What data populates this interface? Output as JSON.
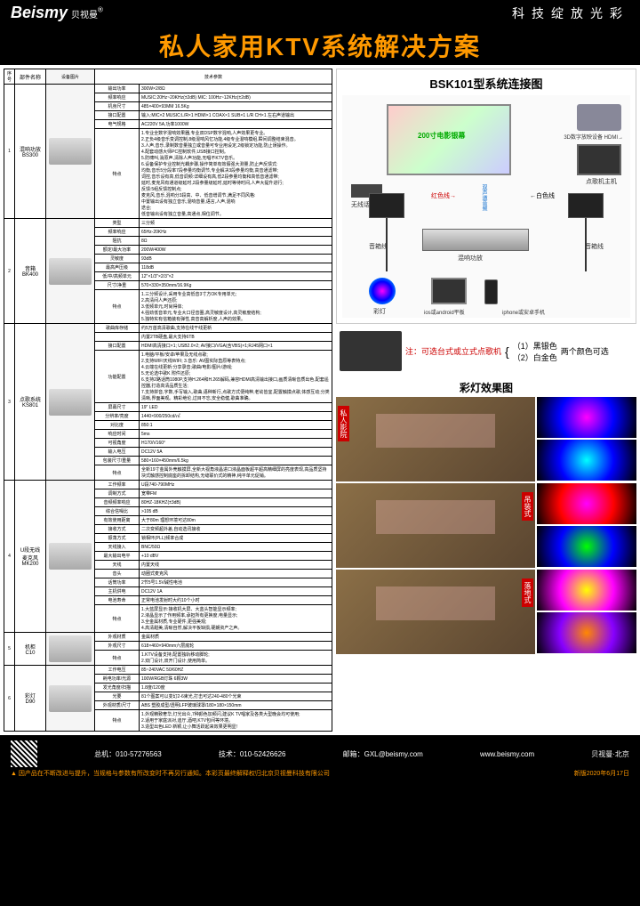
{
  "header": {
    "logo": "Beismy",
    "logo_cn": "贝视曼",
    "tagline": "科技绽放光彩"
  },
  "title": "私人家用KTV系统解决方案",
  "table": {
    "headers": [
      "序号",
      "部件名称",
      "设备图片",
      "技术参数"
    ],
    "rows": [
      {
        "num": "1",
        "name": "混响功放\nBS300",
        "specs": [
          [
            "输出功率",
            "300W×2/8Ω"
          ],
          [
            "频率响应",
            "MUSIC:20Hz~20KHz(±2dB) MIC: 100Hz~12KHz(±2dB)"
          ],
          [
            "机身尺寸",
            "485×400×93MM 16.5Kg"
          ],
          [
            "接口配置",
            "输入:MIC×2 MUSIC:L/R×1 HDMI×1 COAX×1 SUB×1 L/R CH×1 左右声道输出"
          ],
          [
            "电气规格",
            "AC220V 5A,功率1000W"
          ],
          [
            "特点",
            "1.专业全数字混响效果器,专业双DSP数字混响,人声效果更专业。\n2.正负4级音乐变调控制,8级混响风忆功能,4级专业混响模组,瞬间调整结束混音。\n3.人声,音乐,录制数音量独立或音量可专业用设定,2级锁定功能,防止误操作。\n4.配套动感大师PC控制软件,USB接口控制。\n5.防啸叫,消原声,清除人声功能,无唱不KTV音乐。\n6.设备保护专业控制光耦步骤,操作简单有效假强大测量,防止声反馈式:\n均衡,音乐5分段率7段参量均衡调节,专业解决3段参量均衡,高音通滤带;\n词控,音乐设有高,低音调频:详细设有高,低2段参量均衡和高低音通滤带;\n延时,麦克风有通道级延时,2段参量级延时,延时等待时间,人声大提升进行;\n反馈:5组反馈控制点;\n麦克风,音乐,混响分3段高、中、低音增调节,满足不同风格:\n中置输出设有独立音乐,混响音量,语言,人声,混响\n迭合;\n低音输出设有独立音量,高通点,相位调节。"
          ]
        ]
      },
      {
        "num": "2",
        "name": "音箱\nBK400",
        "specs": [
          [
            "类型",
            "三分频"
          ],
          [
            "频率响应",
            "65Hz-20KHz"
          ],
          [
            "阻抗",
            "8Ω"
          ],
          [
            "额定/最大功率",
            "200W/400W"
          ],
          [
            "灵敏度",
            "93dB"
          ],
          [
            "最高声压级",
            "118dB"
          ],
          [
            "低/中/高频单元",
            "12\"×1/3\"×2/3\"×2"
          ],
          [
            "尺寸/净重",
            "570×330×350mm/16.9Kg"
          ],
          [
            "特点",
            "1.三分频设计,采用专业高低音3寸方OK专用单元;\n2.高清间人声还原;\n3.低频单元,时尚得体;\n4.强劲低音单元,专业大口径音圈,高灵敏度设计,高灵敏度结构;\n5.独特实有信箱装有弹性,高音高解析度,人声的效果。"
          ]
        ]
      },
      {
        "num": "3",
        "name": "点歌系统\nKS801",
        "specs": [
          [
            "歌曲库存储",
            "约5万首高清歌曲,支持在线干线更新"
          ],
          [
            "",
            "内置2TB硬盘,最大支持6TB"
          ],
          [
            "接口配置",
            "HDMI高清接口×1; USB2.0×2; AV接口/VGA(含VBS)×1;RJ45网口×1"
          ],
          [
            "功能配置",
            "1.电脑/平板/安卓/苹果及无线点歌;\n2.支持WIFI天线WIFI; 3.音乐: AV图实际直原等表特点;\n4.云端在线更新:分享录音;歌曲/电影/图片/游戏;\n5.无论选中歌K 附件还原;\n6.支持2路话筒1080P,支持H.264和H.265解码,兼容HDMI高清输出接口,画质清晰音质出色,配套遥控器,打造高清品质生活;\n7.支持拼音,字数,手写输入,歌曲,语种新行,点歌方式便纯粹,老幼皆宜,配置触摸点歌,体感互动;分类清晰,界面美观。精彩绝伦,过目不忘,安全稳健,歌曲准确。"
          ],
          [
            "屏幕尺寸",
            "19\" LED"
          ],
          [
            "分辨率/亮度",
            "1440×900/250cd/㎡"
          ],
          [
            "对比度",
            "850:1"
          ],
          [
            "响应时间",
            "5ms"
          ],
          [
            "可视角度",
            "H170/V160°"
          ],
          [
            "输入电压",
            "DC12V 5A"
          ],
          [
            "包装尺寸/重量",
            "580×160×450mm/6.5kg"
          ],
          [
            "特点",
            "全新19寸金属外壳触摸屏,全新大视角液晶进口液晶面板超平超高精细屏的亮度表现,高品质坚持块式触感控制底座的拆卸结构,无缝联价式的精神,纯平单元促销。"
          ]
        ]
      },
      {
        "num": "4",
        "name": "U段无线\n麦克风\nMK200",
        "specs": [
          [
            "工作频率",
            "U段740-790MHz"
          ],
          [
            "调制方式",
            "宽带FM"
          ],
          [
            "音频频率响应",
            "80HZ-18KHZ(±3dB)"
          ],
          [
            "综合信噪比",
            ">105 dB"
          ],
          [
            "有效使用距离",
            "大于80m 理想环境可达80m"
          ],
          [
            "接收方式",
            "二次变频超外差,自动选讯接收"
          ],
          [
            "振荡方式",
            "锁相环(PLL)频率合成"
          ],
          [
            "天线接入",
            "BNC/50Ω"
          ],
          [
            "最大输出电平",
            "+10 dBV"
          ],
          [
            "天线",
            "内置天线"
          ],
          [
            "音头",
            "动圈式麦克风"
          ],
          [
            "话筒功率",
            "2节5号1.5V碱性电池"
          ],
          [
            "主机供电",
            "DC12V 1A"
          ],
          [
            "电池寿命",
            "正常电池发射时大约10个小时"
          ],
          [
            "特点",
            "1.大蓝屏显示:接收机大屏、大蓝头智能显示频率;\n2.液晶显示了作用频率,承担所有更换度,电量显示;\n3.全金属材质,专业硬件,更强美观;\n4.高清甜美,清晰自然,解决平板缺损,硬朗资产之声。"
          ]
        ]
      },
      {
        "num": "5",
        "name": "机柜\nC10",
        "specs": [
          [
            "外观材质",
            "金属材质"
          ],
          [
            "外观尺寸",
            "618×460×940mm六层底轮"
          ],
          [
            "特点",
            "1.KTV设备支持,配置独轨移动脚轮;\n2.双门设计,双开门设计,使用简单。"
          ]
        ]
      },
      {
        "num": "6",
        "name": "彩灯\nD90",
        "specs": [
          [
            "工作电压",
            "85~240VAC   50/60HZ"
          ],
          [
            "耗电功率/光源",
            "100W/RGB灯珠 6颗3W"
          ],
          [
            "发光角度/扫描",
            "1.8度/120度"
          ],
          [
            "光要",
            "81个图案可以变幻2-6束光,打击可达240-480个光束"
          ],
          [
            "外观材质/尺寸",
            "ABS 塑胶成型/透明LFP玻璃球罩/180×180×150mm"
          ],
          [
            "特点",
            "1.外观精致奢华,灯光出众,7种颜色加频闪,建议K TV唱家及各类大型晚会均可使用;\n2.适用于家庭派对,迪厅,酒吧,KTV包间等环境。\n3.造型出色LED 新颖,让小舞活跃起来效果更明显!"
          ]
        ]
      }
    ]
  },
  "diagram": {
    "title": "BSK101型系统连接图",
    "screen": "200寸电影银幕",
    "projector": "3D数字放映设备\nHDMI→",
    "host": "点歌机主机",
    "mic": "无线话筒",
    "amp": "混响功放",
    "spk": "音箱线",
    "disco": "彩灯",
    "tablet": "ios或android平板",
    "phone": "iphone或安卓手机",
    "red": "红色线→",
    "white": "←白色线",
    "dual": "双声道音频"
  },
  "note": {
    "text": "注：可选台式或立式点歌机",
    "opt1": "（1）黑银色",
    "opt2": "（2）白金色",
    "opt_note": "两个颜色可选"
  },
  "lights_title": "彩灯效果图",
  "room_labels": [
    "私人影院",
    "吊装式",
    "落地式"
  ],
  "footer": {
    "tel": "总机：010-57276563",
    "tech": "技术：010-52426626",
    "email": "邮箱：GXL@beismy.com",
    "web": "www.beismy.com",
    "brand": "贝视曼·北京",
    "note": "▲ 因产品在不断改进与提升，当规格与参数有所改变时不再另行通知。本彩页最终解释权归北京贝视曼科技有限公司",
    "date": "新版2020年6月17日"
  }
}
